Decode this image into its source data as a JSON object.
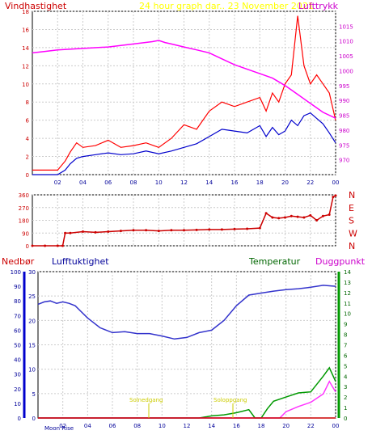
{
  "header": {
    "left_title": "Vindhastighet",
    "center_title": "24 hour graph dar.. 23 November 2021",
    "right_title": "Lufttrykk"
  },
  "colors": {
    "wind": "#ff0000",
    "gust": "#ff0000",
    "avg_wind": "#0000cc",
    "pressure": "#ff00ff",
    "direction": "#cc0000",
    "humidity": "#3333cc",
    "temperature": "#009900",
    "dewpoint": "#ff33ff",
    "rain": "#cc0000",
    "sun": "#cccc00",
    "axis_left": "#cc0000",
    "axis_right": "#cc00cc"
  },
  "chart_data": [
    {
      "type": "line",
      "name": "wind-pressure",
      "ylabel": "Vindhastighet",
      "ylabel_right": "Lufttrykk",
      "ylim": [
        0,
        18
      ],
      "yticks": [
        0,
        2,
        4,
        6,
        8,
        10,
        12,
        14,
        16,
        18
      ],
      "y2lim": [
        965,
        1020
      ],
      "y2ticks": [
        970,
        975,
        980,
        985,
        990,
        995,
        1000,
        1005,
        1010,
        1015
      ],
      "xlim": [
        0,
        24
      ],
      "xticks": [
        "02",
        "04",
        "06",
        "08",
        "10",
        "12",
        "14",
        "16",
        "18",
        "20",
        "22",
        "00"
      ],
      "series": [
        {
          "name": "gust",
          "axis": "left",
          "x": [
            0,
            1,
            2,
            2.6,
            3,
            3.5,
            4,
            5,
            6,
            7,
            8,
            9,
            10,
            11,
            12,
            13,
            14,
            15,
            16,
            17,
            18,
            18.5,
            19,
            19.5,
            20,
            20.5,
            21,
            21.5,
            22,
            22.5,
            23,
            23.5,
            24
          ],
          "values": [
            0.5,
            0.5,
            0.5,
            1.5,
            2.5,
            3.5,
            3,
            3.2,
            3.8,
            3,
            3.2,
            3.5,
            3,
            4,
            5.5,
            5,
            7,
            8,
            7.5,
            8,
            8.5,
            7,
            9,
            8,
            10,
            11,
            17.5,
            12,
            10,
            11,
            10,
            9,
            6
          ]
        },
        {
          "name": "avg_wind",
          "axis": "left",
          "x": [
            0,
            1,
            2,
            2.6,
            3,
            3.5,
            4,
            5,
            6,
            7,
            8,
            9,
            10,
            11,
            12,
            13,
            14,
            15,
            16,
            17,
            18,
            18.5,
            19,
            19.5,
            20,
            20.5,
            21,
            21.5,
            22,
            22.5,
            23,
            23.5,
            24
          ],
          "values": [
            0,
            0,
            0,
            0.5,
            1.2,
            1.8,
            2,
            2.2,
            2.4,
            2.2,
            2.3,
            2.6,
            2.3,
            2.6,
            3,
            3.4,
            4.2,
            5,
            4.8,
            4.6,
            5.4,
            4.2,
            5.2,
            4.4,
            4.8,
            6,
            5.4,
            6.5,
            6.8,
            6.2,
            5.6,
            4.6,
            3.5
          ]
        },
        {
          "name": "pressure",
          "axis": "right",
          "x": [
            0,
            1,
            2,
            4,
            6,
            8,
            9.5,
            10,
            10.5,
            11,
            12,
            13,
            14,
            15,
            16,
            17,
            18,
            19,
            20,
            21,
            22,
            23,
            24
          ],
          "values": [
            1006,
            1006.5,
            1007,
            1007.5,
            1008,
            1009,
            1009.8,
            1010.2,
            1009.5,
            1009,
            1008,
            1007,
            1006,
            1004,
            1002,
            1000.5,
            999,
            997.5,
            995,
            992,
            989,
            986,
            984
          ]
        }
      ]
    },
    {
      "type": "scatter",
      "name": "wind-direction",
      "ylim": [
        0,
        360
      ],
      "yticks": [
        0,
        90,
        180,
        270,
        360
      ],
      "direction_labels": [
        "N",
        "W",
        "S",
        "E",
        "N"
      ],
      "xlim": [
        0,
        24
      ],
      "x": [
        0,
        1,
        2,
        2.4,
        2.6,
        3,
        4,
        5,
        6,
        7,
        8,
        9,
        10,
        11,
        12,
        13,
        14,
        15,
        16,
        17,
        18,
        18.5,
        19,
        19.5,
        20,
        20.5,
        21,
        21.5,
        22,
        22.5,
        23,
        23.5,
        23.8,
        24
      ],
      "values": [
        0,
        0,
        0,
        0,
        90,
        90,
        100,
        95,
        100,
        105,
        110,
        110,
        105,
        110,
        110,
        112,
        115,
        115,
        118,
        120,
        125,
        230,
        200,
        195,
        200,
        210,
        205,
        200,
        215,
        180,
        210,
        220,
        345,
        355
      ]
    },
    {
      "type": "line",
      "name": "humidity-temperature",
      "ylabel": "Nedbør",
      "ylabel2": "Lufftuktighet",
      "ylabel3": "Temperatur",
      "ylabel4": "Duggpunkt",
      "rain_axis": {
        "ylim": [
          0,
          100
        ],
        "yticks": [
          0,
          10,
          20,
          30,
          40,
          50,
          60,
          70,
          80,
          90,
          100
        ]
      },
      "humidity_axis": {
        "ylim": [
          0,
          30
        ],
        "yticks": [
          0,
          5,
          10,
          15,
          20,
          25,
          30
        ]
      },
      "temp_axis": {
        "ylim": [
          0,
          14
        ],
        "yticks": [
          0,
          1,
          2,
          3,
          4,
          5,
          6,
          7,
          8,
          9,
          10,
          11,
          12,
          13,
          14
        ]
      },
      "xlim": [
        0,
        24
      ],
      "xticks": [
        "02",
        "04",
        "06",
        "08",
        "10",
        "12",
        "14",
        "16",
        "18",
        "20",
        "22",
        "00"
      ],
      "annotations": [
        "Moon Rise",
        "Solnedgang",
        "Soloppgang"
      ],
      "series": [
        {
          "name": "humidity",
          "axis": "humidity",
          "x": [
            0,
            0.5,
            1,
            1.5,
            2,
            2.5,
            3,
            4,
            5,
            6,
            7,
            8,
            9,
            10,
            11,
            12,
            13,
            14,
            15,
            16,
            17,
            18,
            19,
            20,
            21,
            22,
            23,
            24
          ],
          "values": [
            23.3,
            23.8,
            24,
            23.5,
            23.8,
            23.5,
            23,
            20.5,
            18.5,
            17.5,
            17.7,
            17.3,
            17.3,
            16.8,
            16.2,
            16.5,
            17.5,
            18,
            20,
            23,
            25.2,
            25.6,
            26,
            26.3,
            26.5,
            26.8,
            27.2,
            27
          ]
        },
        {
          "name": "temperature",
          "axis": "temp",
          "x": [
            0,
            12,
            13,
            14,
            15,
            16,
            17,
            17.5,
            18,
            18.5,
            19,
            20,
            21,
            22,
            23,
            23.5,
            24
          ],
          "values": [
            0,
            0,
            0,
            0.2,
            0.3,
            0.5,
            0.8,
            0,
            0,
            0.9,
            1.6,
            2.0,
            2.4,
            2.5,
            4,
            4.8,
            3.5
          ]
        },
        {
          "name": "dewpoint",
          "axis": "temp",
          "x": [
            0,
            18,
            19,
            19.5,
            20,
            21,
            22,
            23,
            23.5,
            24
          ],
          "values": [
            0,
            0,
            0,
            0,
            0.6,
            1.1,
            1.5,
            2.3,
            3.5,
            2.5
          ]
        },
        {
          "name": "rain",
          "axis": "rain",
          "x": [
            0,
            24
          ],
          "values": [
            0,
            0
          ]
        }
      ]
    }
  ]
}
